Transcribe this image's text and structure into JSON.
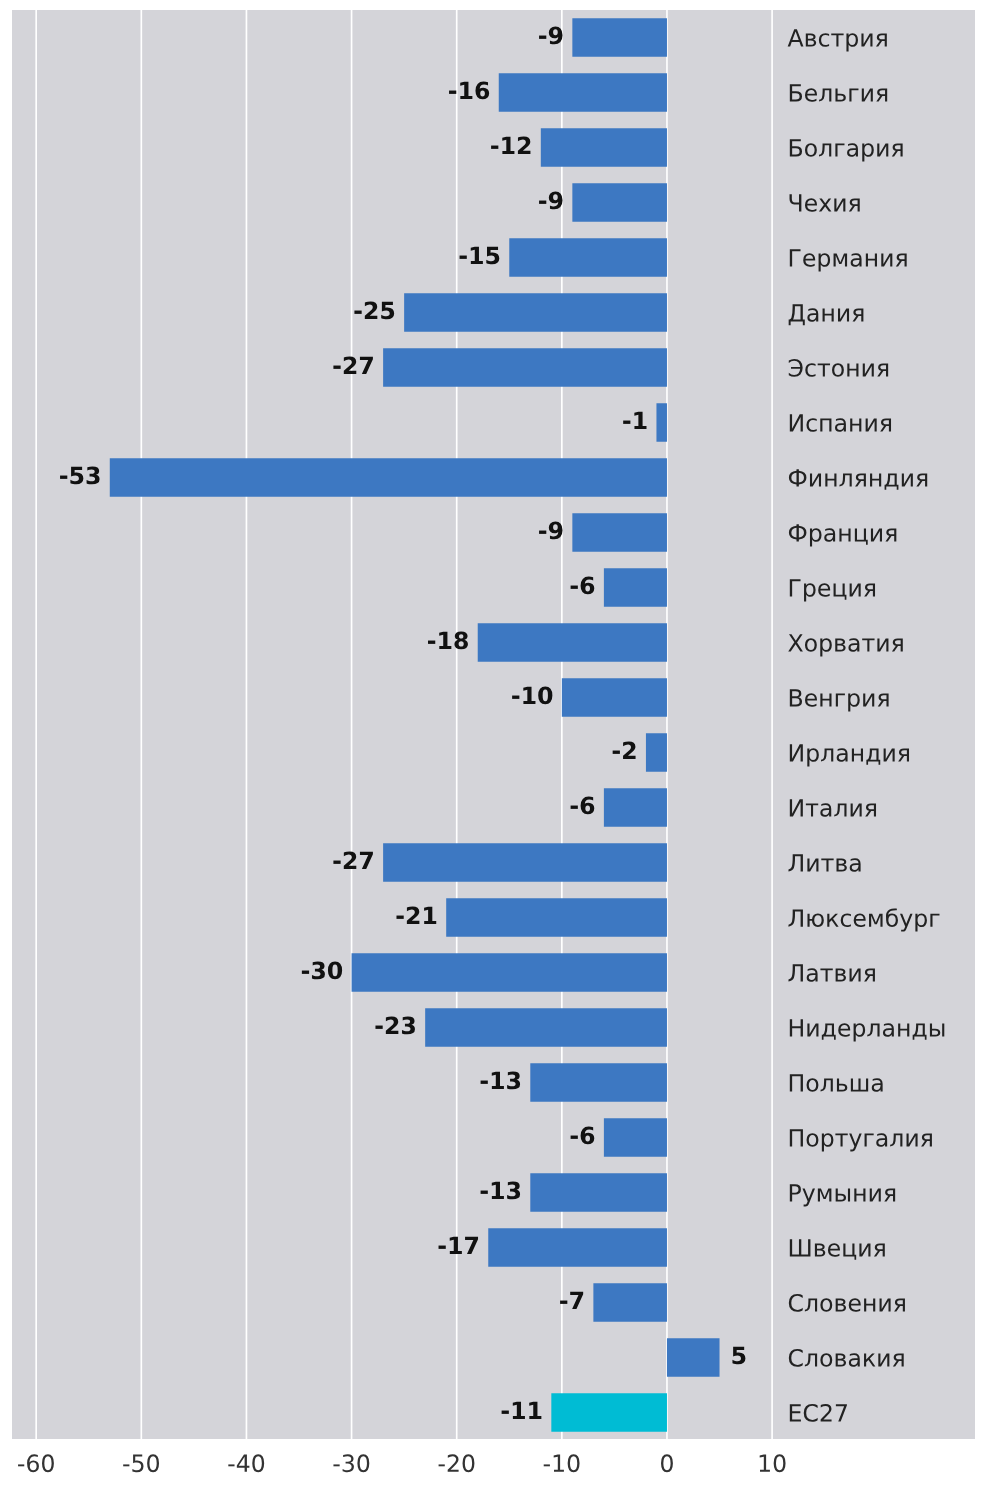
{
  "chart_data": {
    "type": "bar",
    "orientation": "horizontal",
    "categories": [
      "Австрия",
      "Бельгия",
      "Болгария",
      "Чехия",
      "Германия",
      "Дания",
      "Эстония",
      "Испания",
      "Финляндия",
      "Франция",
      "Греция",
      "Хорватия",
      "Венгрия",
      "Ирландия",
      "Италия",
      "Литва",
      "Люксембург",
      "Латвия",
      "Нидерланды",
      "Польша",
      "Португалия",
      "Румыния",
      "Швеция",
      "Словения",
      "Словакия",
      "ЕС27"
    ],
    "values": [
      -9,
      -16,
      -12,
      -9,
      -15,
      -25,
      -27,
      -1,
      -53,
      -9,
      -6,
      -18,
      -10,
      -2,
      -6,
      -27,
      -21,
      -30,
      -23,
      -13,
      -6,
      -13,
      -17,
      -7,
      5,
      -11
    ],
    "colors": [
      "#3d78c2",
      "#3d78c2",
      "#3d78c2",
      "#3d78c2",
      "#3d78c2",
      "#3d78c2",
      "#3d78c2",
      "#3d78c2",
      "#3d78c2",
      "#3d78c2",
      "#3d78c2",
      "#3d78c2",
      "#3d78c2",
      "#3d78c2",
      "#3d78c2",
      "#3d78c2",
      "#3d78c2",
      "#3d78c2",
      "#3d78c2",
      "#3d78c2",
      "#3d78c2",
      "#3d78c2",
      "#3d78c2",
      "#3d78c2",
      "#3d78c2",
      "#00bcd4"
    ],
    "xlim": [
      -62.3,
      29.3
    ],
    "xticks": [
      -60,
      -50,
      -40,
      -30,
      -20,
      -10,
      0,
      10
    ],
    "grid": "x",
    "data_labels": true
  }
}
